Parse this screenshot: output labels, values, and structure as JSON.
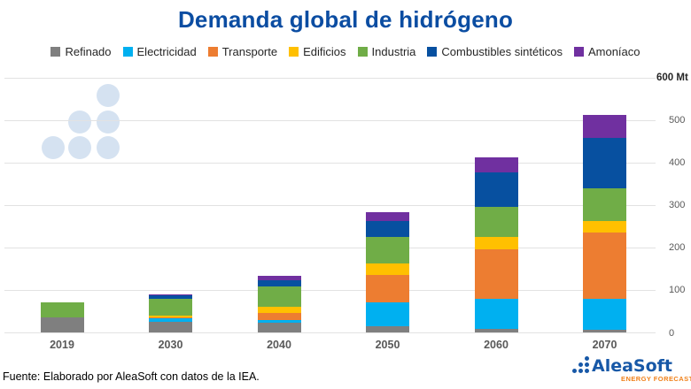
{
  "title": "Demanda global de hidrógeno",
  "chart_data": {
    "type": "bar",
    "stacked": true,
    "title": "Demanda global de hidrógeno",
    "unit": "Mt",
    "categories": [
      "2019",
      "2030",
      "2040",
      "2050",
      "2060",
      "2070"
    ],
    "series": [
      {
        "name": "Refinado",
        "color": "#7F7F7F",
        "values": [
          37,
          26,
          24,
          16,
          10,
          7
        ]
      },
      {
        "name": "Electricidad",
        "color": "#00B0F0",
        "values": [
          0,
          8,
          7,
          56,
          70,
          73
        ]
      },
      {
        "name": "Transporte",
        "color": "#ED7D31",
        "values": [
          0,
          3,
          16,
          65,
          117,
          157
        ]
      },
      {
        "name": "Edificios",
        "color": "#FFC000",
        "values": [
          0,
          3,
          15,
          26,
          29,
          27
        ]
      },
      {
        "name": "Industria",
        "color": "#70AD47",
        "values": [
          34,
          41,
          47,
          63,
          71,
          76
        ]
      },
      {
        "name": "Combustibles sintéticos",
        "color": "#0750A0",
        "values": [
          0,
          8,
          14,
          38,
          80,
          118
        ]
      },
      {
        "name": "Amoníaco",
        "color": "#7030A0",
        "values": [
          0,
          1,
          11,
          19,
          35,
          54
        ]
      }
    ],
    "y_ticks": [
      0,
      100,
      200,
      300,
      400,
      500,
      600
    ],
    "ylim": [
      0,
      600
    ],
    "y_axis_max_label": "600 Mt",
    "y_axis_side": "right",
    "grid": true,
    "legend_position": "top",
    "xlabel": "",
    "ylabel": "Mt"
  },
  "footer": {
    "source_text": "Fuente: Elaborado por AleaSoft con datos de la IEA."
  },
  "logo": {
    "text": "AleaSoft",
    "tagline": "ENERGY FORECASTING"
  },
  "colors": {
    "title": "#0B4DA2",
    "grid": "#E2E2E2",
    "axis_tick": "#595959",
    "axis_max_label": "#262626",
    "watermark": "#D5E2F1",
    "logo_blue": "#1758A7",
    "logo_orange": "#F08019",
    "background": "#FFFFFF"
  }
}
